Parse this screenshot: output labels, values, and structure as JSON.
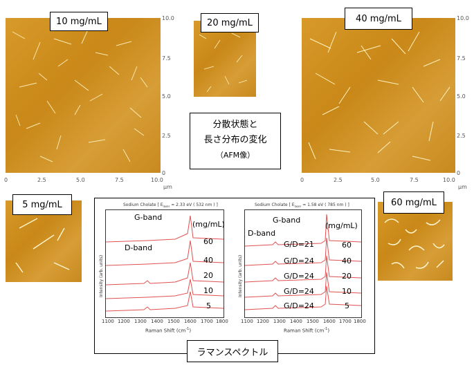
{
  "afm": {
    "c10": {
      "label": "10 mg/mL",
      "yt": [
        "10.0",
        "7.5",
        "5.0",
        "2.5",
        "0"
      ],
      "xt": [
        "0",
        "2.5",
        "5.0",
        "7.5",
        "10.0"
      ],
      "unit": "μm"
    },
    "c20": {
      "label": "20 mg/mL"
    },
    "c40": {
      "label": "40 mg/mL",
      "yt": [
        "10.0",
        "7.5",
        "5.0",
        "2.5",
        "0"
      ],
      "xt": [
        "0",
        "2.5",
        "5.0",
        "7.5",
        "10.0"
      ],
      "unit": "μm"
    },
    "c5": {
      "label": "5 mg/mL"
    },
    "c60": {
      "label": "60 mg/mL"
    }
  },
  "center_caption": {
    "line1": "分散状態と",
    "line2": "長さ分布の変化",
    "line3": "（AFM像）"
  },
  "raman": {
    "title": "ラマンスペクトル",
    "left": {
      "title": "Sodium Cholate [ E",
      "title_sub": "laser",
      "title_end": " = 2.33 eV ( 532 nm ) ]",
      "gband": "G-band",
      "dband": "D-band",
      "unit": "(mg/mL)",
      "concs": [
        "60",
        "40",
        "20",
        "10",
        "5"
      ]
    },
    "right": {
      "title": "Sodium Cholate [ E",
      "title_sub": "laser",
      "title_end": " = 1.58 eV ( 785 nm ) ]",
      "gband": "G-band",
      "dband": "D-band",
      "unit": "(mg/mL)",
      "ratios": [
        "G/D=21",
        "G/D=24",
        "G/D=24",
        "G/D=24",
        "G/D=24"
      ],
      "concs": [
        "60",
        "40",
        "20",
        "10",
        "5"
      ]
    },
    "xticks": [
      "1100",
      "1200",
      "1300",
      "1400",
      "1500",
      "1600",
      "1700",
      "1800"
    ],
    "xlabel": "Raman Shift (cm",
    "xlabel_sup": "-1",
    "xlabel_end": ")",
    "ylabel": "Intensity (arb. units)"
  },
  "colors": {
    "afm": "#c98818",
    "spectrum": "#e05050"
  }
}
